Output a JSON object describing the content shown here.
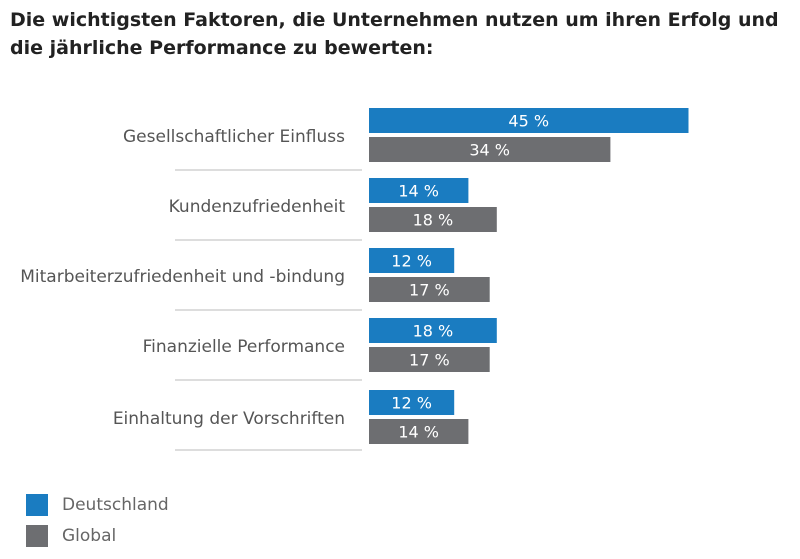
{
  "chart_data": {
    "type": "bar",
    "orientation": "horizontal",
    "title": "Die wichtigsten Faktoren, die Unternehmen nutzen um ihren Erfolg und die jährliche Performance zu bewerten:",
    "categories": [
      "Gesellschaftlicher Einfluss",
      "Kundenzufriedenheit",
      "Mitarbeiterzufriedenheit und -bindung",
      "Finanzielle Performance",
      "Einhaltung der Vorschriften"
    ],
    "series": [
      {
        "name": "Deutschland",
        "color": "#1a7cc1",
        "values": [
          45,
          14,
          12,
          18,
          12
        ],
        "labels": [
          "45 %",
          "14 %",
          "12 %",
          "18 %",
          "12 %"
        ]
      },
      {
        "name": "Global",
        "color": "#6d6e71",
        "values": [
          34,
          18,
          17,
          17,
          14
        ],
        "labels": [
          "34 %",
          "18 %",
          "17 %",
          "17 %",
          "14 %"
        ]
      }
    ],
    "xlim": [
      0,
      100
    ],
    "legend_position": "bottom-left"
  }
}
